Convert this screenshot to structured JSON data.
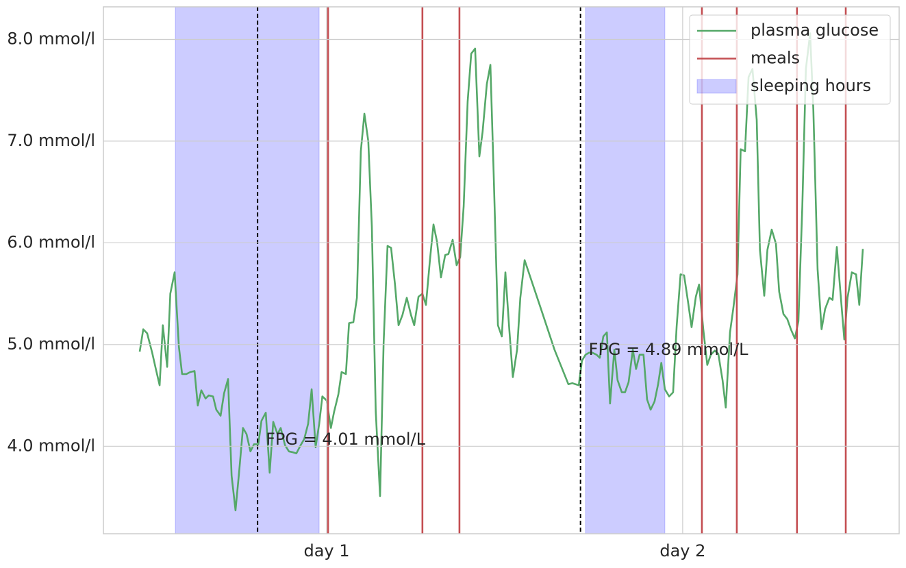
{
  "chart_data": {
    "type": "line",
    "xlim": [
      0.373,
      2.608
    ],
    "ylim": [
      3.14,
      8.32
    ],
    "xticks": [
      {
        "value": 1,
        "label": "day 1"
      },
      {
        "value": 2,
        "label": "day 2"
      }
    ],
    "yticks": [
      {
        "value": 4,
        "label": "4.0 mmol/l"
      },
      {
        "value": 5,
        "label": "5.0 mmol/l"
      },
      {
        "value": 6,
        "label": "6.0 mmol/l"
      },
      {
        "value": 7,
        "label": "7.0 mmol/l"
      },
      {
        "value": 8,
        "label": "8.0 mmol/l"
      }
    ],
    "grid": true,
    "legend": "upper right",
    "x": [
      0.475,
      0.485,
      0.496,
      0.51,
      0.521,
      0.531,
      0.54,
      0.552,
      0.561,
      0.573,
      0.585,
      0.594,
      0.606,
      0.617,
      0.629,
      0.638,
      0.648,
      0.66,
      0.669,
      0.681,
      0.69,
      0.702,
      0.712,
      0.723,
      0.733,
      0.744,
      0.754,
      0.765,
      0.775,
      0.786,
      0.796,
      0.808,
      0.817,
      0.829,
      0.84,
      0.85,
      0.862,
      0.871,
      0.883,
      0.894,
      0.906,
      0.915,
      0.927,
      0.937,
      0.948,
      0.958,
      0.969,
      0.979,
      0.988,
      1.0,
      1.012,
      1.021,
      1.033,
      1.042,
      1.054,
      1.063,
      1.075,
      1.085,
      1.096,
      1.106,
      1.117,
      1.127,
      1.138,
      1.15,
      1.16,
      1.171,
      1.181,
      1.192,
      1.202,
      1.213,
      1.225,
      1.237,
      1.246,
      1.258,
      1.269,
      1.279,
      1.29,
      1.3,
      1.31,
      1.321,
      1.333,
      1.342,
      1.354,
      1.365,
      1.375,
      1.385,
      1.396,
      1.406,
      1.417,
      1.429,
      1.438,
      1.45,
      1.46,
      1.469,
      1.481,
      1.492,
      1.502,
      1.513,
      1.523,
      1.535,
      1.544,
      1.556,
      1.602,
      1.64,
      1.679,
      1.69,
      1.708,
      1.717,
      1.727,
      1.737,
      1.746,
      1.758,
      1.767,
      1.777,
      1.787,
      1.796,
      1.808,
      1.817,
      1.829,
      1.838,
      1.848,
      1.86,
      1.869,
      1.879,
      1.89,
      1.9,
      1.91,
      1.921,
      1.931,
      1.94,
      1.95,
      1.962,
      1.973,
      1.983,
      1.994,
      2.004,
      2.015,
      2.025,
      2.037,
      2.046,
      2.058,
      2.069,
      2.079,
      2.09,
      2.1,
      2.112,
      2.121,
      2.133,
      2.142,
      2.154,
      2.163,
      2.175,
      2.185,
      2.196,
      2.208,
      2.217,
      2.229,
      2.238,
      2.25,
      2.262,
      2.271,
      2.283,
      2.294,
      2.304,
      2.315,
      2.325,
      2.336,
      2.346,
      2.358,
      2.367,
      2.379,
      2.39,
      2.4,
      2.412,
      2.421,
      2.433,
      2.442,
      2.454,
      2.463,
      2.475,
      2.487,
      2.496,
      2.506
    ],
    "series": [
      {
        "name": "plasma glucose",
        "color": "#55a868",
        "values": [
          4.93,
          5.15,
          5.11,
          4.92,
          4.75,
          4.6,
          5.19,
          4.78,
          5.5,
          5.71,
          4.98,
          4.71,
          4.71,
          4.73,
          4.74,
          4.4,
          4.55,
          4.47,
          4.5,
          4.49,
          4.36,
          4.3,
          4.52,
          4.66,
          3.71,
          3.37,
          3.74,
          4.18,
          4.12,
          3.95,
          4.02,
          4.02,
          4.25,
          4.33,
          3.74,
          4.24,
          4.12,
          4.18,
          4.01,
          3.95,
          3.94,
          3.93,
          4.01,
          4.07,
          4.22,
          4.56,
          3.99,
          4.22,
          4.49,
          4.45,
          4.18,
          4.34,
          4.51,
          4.73,
          4.71,
          5.21,
          5.22,
          5.46,
          6.9,
          7.27,
          7.0,
          6.16,
          4.34,
          3.51,
          5.02,
          5.97,
          5.95,
          5.59,
          5.19,
          5.29,
          5.46,
          5.29,
          5.19,
          5.47,
          5.5,
          5.39,
          5.83,
          6.18,
          6.01,
          5.66,
          5.88,
          5.89,
          6.03,
          5.78,
          5.86,
          6.36,
          7.39,
          7.86,
          7.91,
          6.85,
          7.09,
          7.56,
          7.75,
          6.7,
          5.19,
          5.08,
          5.71,
          5.15,
          4.68,
          4.95,
          5.46,
          5.83,
          5.35,
          4.95,
          4.61,
          4.62,
          4.6,
          4.84,
          4.9,
          4.92,
          4.92,
          4.9,
          4.87,
          5.08,
          5.12,
          4.42,
          4.95,
          4.65,
          4.53,
          4.53,
          4.63,
          4.95,
          4.76,
          4.9,
          4.9,
          4.46,
          4.36,
          4.44,
          4.61,
          4.82,
          4.56,
          4.49,
          4.53,
          5.18,
          5.69,
          5.68,
          5.42,
          5.17,
          5.47,
          5.59,
          5.15,
          4.8,
          4.9,
          4.94,
          4.91,
          4.65,
          4.38,
          5.12,
          5.35,
          5.69,
          6.92,
          6.9,
          7.63,
          7.71,
          7.21,
          5.93,
          5.48,
          5.93,
          6.13,
          5.99,
          5.52,
          5.3,
          5.25,
          5.15,
          5.06,
          5.23,
          6.36,
          7.71,
          8.06,
          7.31,
          5.74,
          5.15,
          5.35,
          5.46,
          5.44,
          5.96,
          5.56,
          5.05,
          5.46,
          5.71,
          5.69,
          5.39,
          5.94
        ]
      }
    ],
    "meals": {
      "name": "meals",
      "color": "#c44e52",
      "x": [
        1.004,
        1.269,
        1.373,
        2.054,
        2.152,
        2.321,
        2.458
      ]
    },
    "sleeping": {
      "name": "sleeping hours",
      "color": "#0000ff",
      "spans": [
        [
          0.575,
          0.979
        ],
        [
          1.727,
          1.95
        ]
      ]
    },
    "fasting": {
      "color": "#000000",
      "x": [
        0.806,
        1.713
      ],
      "values": [
        4.01,
        4.89
      ],
      "value_labels": [
        "FPG = 4.01 mmol/L",
        "FPG = 4.89 mmol/L"
      ]
    }
  }
}
